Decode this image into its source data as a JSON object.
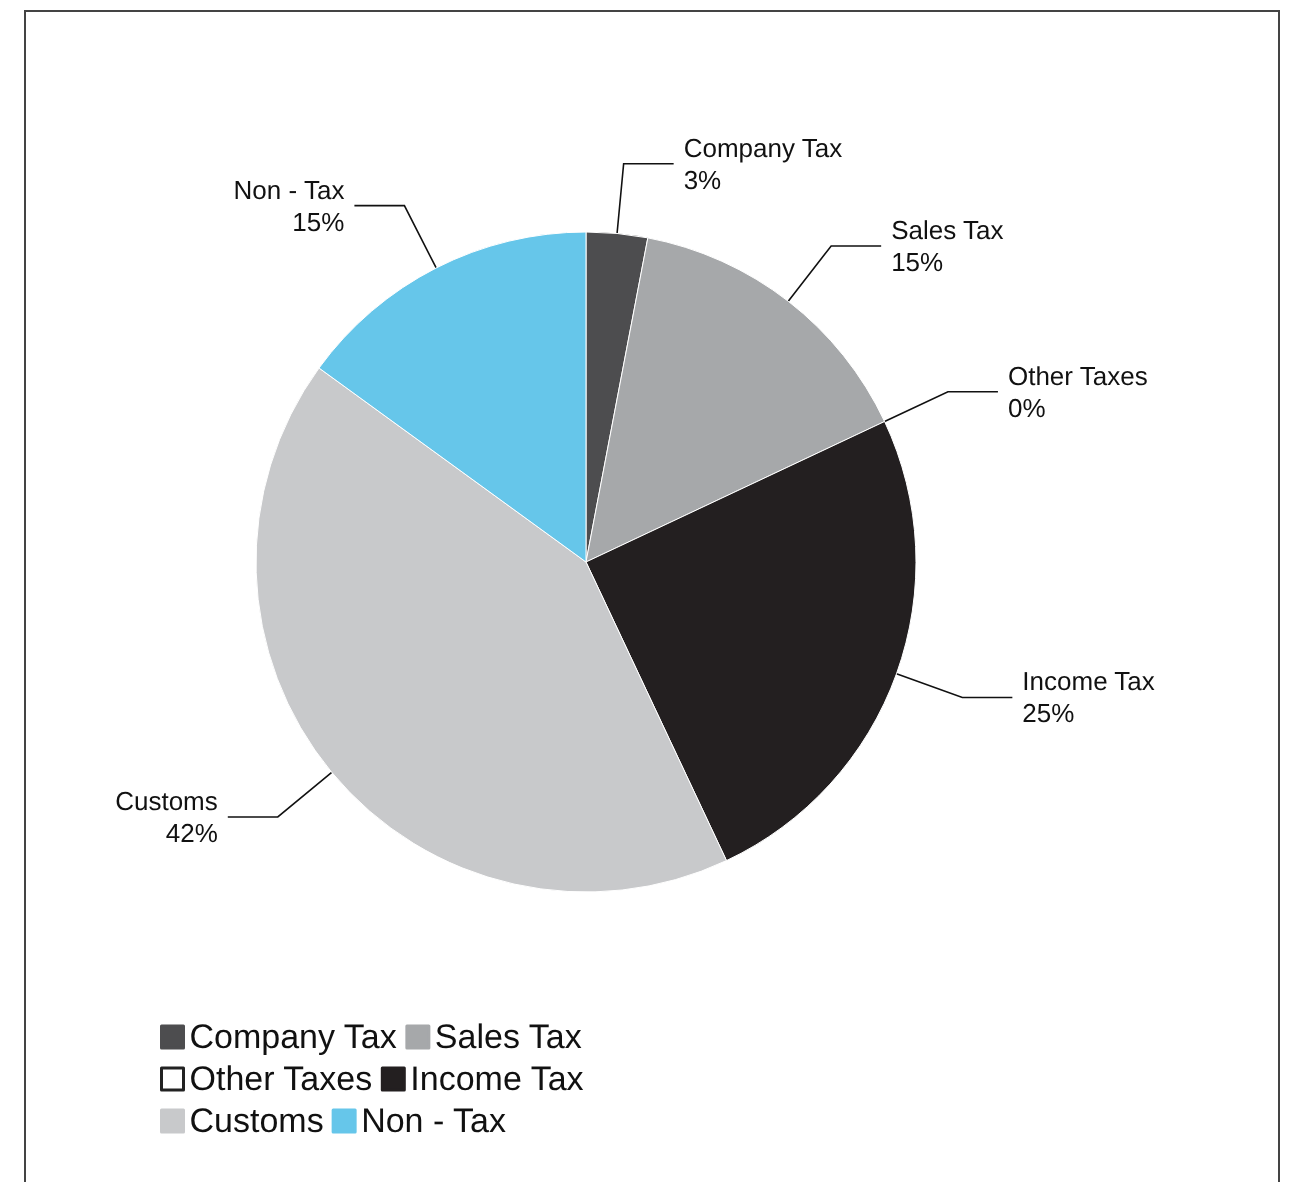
{
  "chart_data": {
    "type": "pie",
    "categories": [
      "Company Tax",
      "Sales Tax",
      "Other Taxes",
      "Income Tax",
      "Customs",
      "Non - Tax"
    ],
    "values": [
      3,
      15,
      0,
      25,
      42,
      15
    ],
    "colors": [
      "#4d4d4f",
      "#a6a8aa",
      "#ffffff",
      "#231f20",
      "#c8c9cb",
      "#66c6ea"
    ],
    "legend": "bottom",
    "value_labels": [
      "3%",
      "15%",
      "0%",
      "25%",
      "42%",
      "15%"
    ]
  }
}
